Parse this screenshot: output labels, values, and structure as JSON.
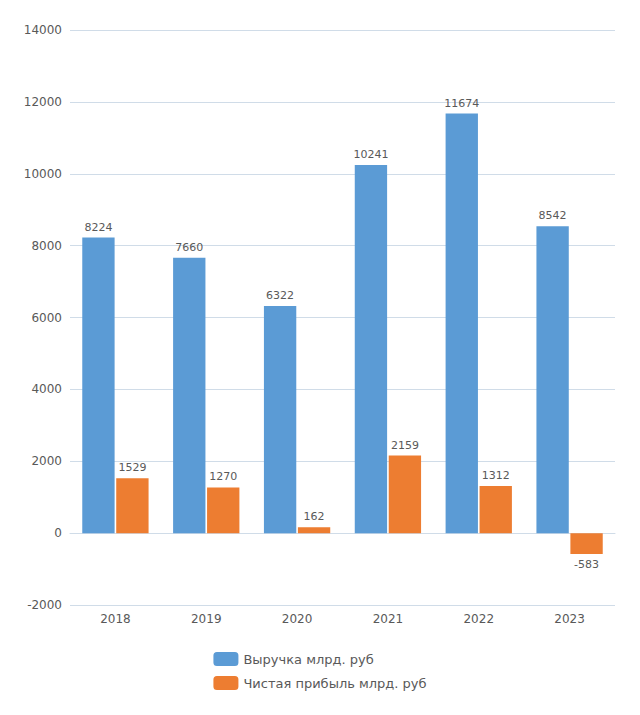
{
  "chart_data": {
    "type": "bar",
    "categories": [
      "2018",
      "2019",
      "2020",
      "2021",
      "2022",
      "2023"
    ],
    "series": [
      {
        "name": "Выручка млрд. руб",
        "color": "#5B9BD5",
        "values": [
          8224,
          7660,
          6322,
          10241,
          11674,
          8542
        ]
      },
      {
        "name": "Чистая прибыль млрд. руб",
        "color": "#ED7D31",
        "values": [
          1529,
          1270,
          162,
          2159,
          1312,
          -583
        ]
      }
    ],
    "ylim": [
      -2000,
      14000
    ],
    "yticks": [
      -2000,
      0,
      2000,
      4000,
      6000,
      8000,
      10000,
      12000,
      14000
    ],
    "grid": true,
    "legend": "bottom",
    "data_labels": true
  }
}
